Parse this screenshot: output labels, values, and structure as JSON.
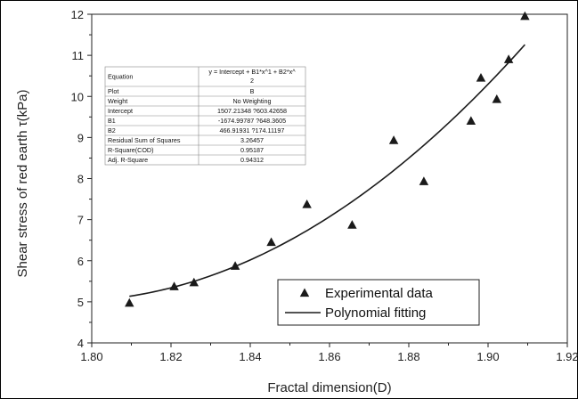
{
  "chart_data": {
    "type": "scatter",
    "xlabel": "Fractal dimension(D)",
    "ylabel": "Shear stress of red earth τ(kPa)",
    "xlim": [
      1.8,
      1.92
    ],
    "ylim": [
      4,
      12
    ],
    "x_ticks": [
      "1.80",
      "1.82",
      "1.84",
      "1.86",
      "1.88",
      "1.90",
      "1.92"
    ],
    "y_ticks": [
      "4",
      "5",
      "6",
      "7",
      "8",
      "9",
      "10",
      "11",
      "12"
    ],
    "grid": false,
    "legend_position": "bottom-right",
    "series": [
      {
        "name": "Experimental data",
        "marker": "triangle",
        "x": [
          1.8095,
          1.8208,
          1.8258,
          1.8362,
          1.8453,
          1.8543,
          1.8657,
          1.8762,
          1.8838,
          1.8957,
          1.8982,
          1.9022,
          1.9052,
          1.9093
        ],
        "y": [
          4.97,
          5.37,
          5.47,
          5.87,
          6.45,
          7.37,
          6.87,
          8.93,
          7.93,
          9.4,
          10.45,
          9.93,
          10.9,
          11.95
        ]
      },
      {
        "name": "Polynomial fitting",
        "type": "line",
        "fit": {
          "intercept": 1507.21348,
          "b1": -1674.99787,
          "b2": 466.91931
        },
        "x_range": [
          1.8095,
          1.9093
        ]
      }
    ],
    "stats_table": [
      {
        "label": "Equation",
        "value": "y = Intercept + B1*x^1 + B2*x^",
        "value2": "2"
      },
      {
        "label": "Plot",
        "value": "B"
      },
      {
        "label": "Weight",
        "value": "No Weighting"
      },
      {
        "label": "Intercept",
        "value": "1507.21348 ?603.42658"
      },
      {
        "label": "B1",
        "value": "-1674.99787 ?648.3605"
      },
      {
        "label": "B2",
        "value": "466.91931 ?174.11197"
      },
      {
        "label": "Residual Sum of Squares",
        "value": "3.26457"
      },
      {
        "label": "R-Square(COD)",
        "value": "0.95187"
      },
      {
        "label": "Adj. R-Square",
        "value": "0.94312"
      }
    ]
  },
  "colors": {
    "axis": "#222222",
    "marker": "#1a1a1a",
    "fit_line": "#1a1a1a",
    "table_border": "#888888",
    "frame": "#000000"
  }
}
